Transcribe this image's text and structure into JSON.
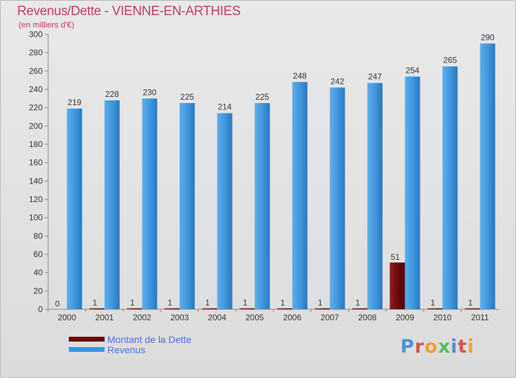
{
  "chart_data": {
    "type": "bar",
    "title": "Revenus/Dette - VIENNE-EN-ARTHIES",
    "subtitle": "(en milliers d'€)",
    "categories": [
      "2000",
      "2001",
      "2002",
      "2003",
      "2004",
      "2005",
      "2006",
      "2007",
      "2008",
      "2009",
      "2010",
      "2011"
    ],
    "series": [
      {
        "name": "Montant de la Dette",
        "color": "#6b0a0a",
        "values": [
          0,
          1,
          1,
          1,
          1,
          1,
          1,
          1,
          1,
          51,
          1,
          1
        ]
      },
      {
        "name": "Revenus",
        "color": "#3d95dc",
        "values": [
          219,
          228,
          230,
          225,
          214,
          225,
          248,
          242,
          247,
          254,
          265,
          290
        ]
      }
    ],
    "ylim": [
      0,
      300
    ],
    "ytick_step": 20,
    "grid": false,
    "legend_position": "bottom-left"
  },
  "logo": {
    "text": "Proxiti",
    "colors": [
      "#4a90d9",
      "#d9534f",
      "#f0a030",
      "#5cb85c",
      "#4a90d9",
      "#d9534f",
      "#f0a030"
    ]
  }
}
